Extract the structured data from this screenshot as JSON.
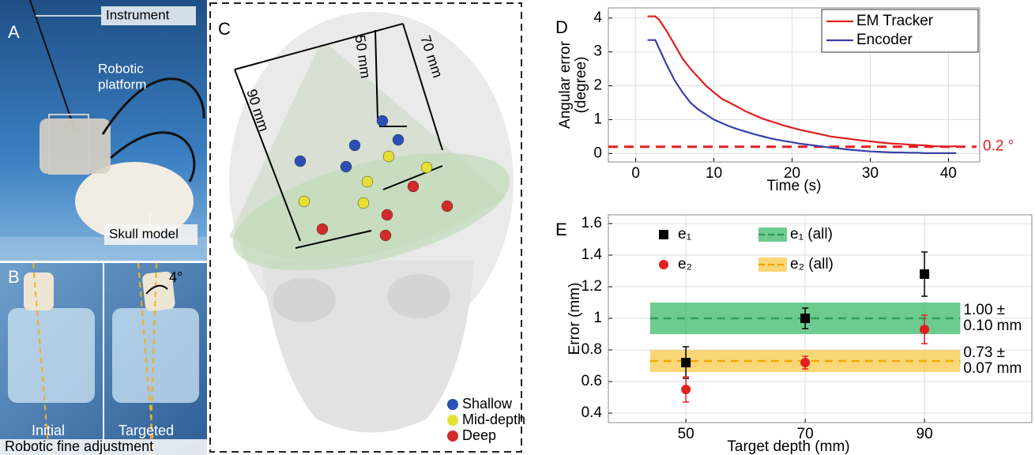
{
  "panel_a": {
    "label": "A",
    "callouts": [
      "Instrument",
      [
        "Robotic",
        "platform"
      ],
      "Skull model"
    ]
  },
  "panel_b": {
    "label": "B",
    "angle": "4°",
    "views": [
      "Initial",
      "Targeted"
    ],
    "caption": "Robotic fine adjustment"
  },
  "panel_c": {
    "label": "C",
    "dimensions": [
      "90 mm",
      "50 mm",
      "70 mm"
    ],
    "legend": [
      {
        "name": "Shallow",
        "color": "#2b4fb5"
      },
      {
        "name": "Mid-depth",
        "color": "#e6e034"
      },
      {
        "name": "Deep",
        "color": "#d22b2b"
      }
    ]
  },
  "chart_data": [
    {
      "type": "line",
      "label": "D",
      "xlabel": "Time (s)",
      "ylabel": [
        "Angular error",
        "(degree)"
      ],
      "xlim": [
        -3.5,
        44
      ],
      "ylim": [
        -0.25,
        4.3
      ],
      "xticks": [
        0,
        10,
        20,
        30,
        40
      ],
      "yticks": [
        0,
        1,
        2,
        3,
        4
      ],
      "grid": true,
      "legend": "upper-right",
      "x": [
        1.5,
        2.5,
        3,
        4,
        5,
        6,
        7,
        8,
        9,
        10,
        11,
        12,
        13,
        14,
        15,
        16,
        17,
        18,
        19,
        20,
        21,
        22,
        23,
        24,
        25,
        26,
        27,
        28,
        29,
        30,
        31,
        32,
        33,
        34,
        35,
        36,
        37,
        38,
        39,
        40,
        41
      ],
      "series": [
        {
          "name": "EM Tracker",
          "color": "#e02020",
          "values": [
            4.05,
            4.05,
            3.95,
            3.6,
            3.2,
            2.8,
            2.5,
            2.25,
            2.0,
            1.8,
            1.62,
            1.5,
            1.38,
            1.25,
            1.15,
            1.05,
            0.97,
            0.9,
            0.82,
            0.76,
            0.7,
            0.65,
            0.6,
            0.55,
            0.5,
            0.47,
            0.44,
            0.41,
            0.38,
            0.36,
            0.33,
            0.31,
            0.29,
            0.28,
            0.26,
            0.25,
            0.24,
            0.22,
            0.21,
            0.2,
            0.22
          ]
        },
        {
          "name": "Encoder",
          "color": "#3a3fa8",
          "values": [
            3.35,
            3.35,
            3.1,
            2.6,
            2.15,
            1.8,
            1.5,
            1.3,
            1.15,
            1.0,
            0.9,
            0.8,
            0.72,
            0.65,
            0.58,
            0.52,
            0.46,
            0.41,
            0.37,
            0.33,
            0.29,
            0.26,
            0.23,
            0.2,
            0.17,
            0.15,
            0.12,
            0.1,
            0.08,
            0.06,
            0.05,
            0.04,
            0.03,
            0.03,
            0.02,
            0.02,
            0.01,
            0.01,
            0.01,
            0.01,
            0.01
          ]
        }
      ],
      "threshold": {
        "value": 0.2,
        "label": "0.2 °",
        "color": "#e02020"
      }
    },
    {
      "type": "errorbar",
      "label": "E",
      "xlabel": "Target depth (mm)",
      "ylabel": "Error (mm)",
      "xlim": [
        37,
        108
      ],
      "ylim": [
        0.34,
        1.655
      ],
      "xticks": [
        50,
        70,
        90
      ],
      "yticks": [
        0.4,
        0.6,
        0.8,
        1,
        1.2,
        1.4,
        1.6
      ],
      "grid": true,
      "series": [
        {
          "name": "e₁",
          "color": "#000000",
          "marker": "square",
          "x": [
            50,
            70,
            90
          ],
          "values": [
            0.72,
            1.0,
            1.28
          ],
          "errors": [
            0.1,
            0.065,
            0.14
          ]
        },
        {
          "name": "e₂",
          "color": "#e02020",
          "marker": "circle",
          "x": [
            50,
            70,
            90
          ],
          "values": [
            0.55,
            0.72,
            0.93
          ],
          "errors": [
            0.08,
            0.04,
            0.09
          ]
        }
      ],
      "bands": [
        {
          "name": "e₁ (all)",
          "color": "#2e9e57",
          "fill": "#3dba6a",
          "value": 1.0,
          "error": 0.1,
          "xrange": [
            44,
            96
          ],
          "label": [
            "1.00 ±",
            "0.10 mm"
          ]
        },
        {
          "name": "e₂ (all)",
          "color": "#f0a800",
          "fill": "#f7c948",
          "value": 0.73,
          "error": 0.07,
          "xrange": [
            44,
            96
          ],
          "label": [
            "0.73 ±",
            "0.07 mm"
          ]
        }
      ]
    }
  ]
}
